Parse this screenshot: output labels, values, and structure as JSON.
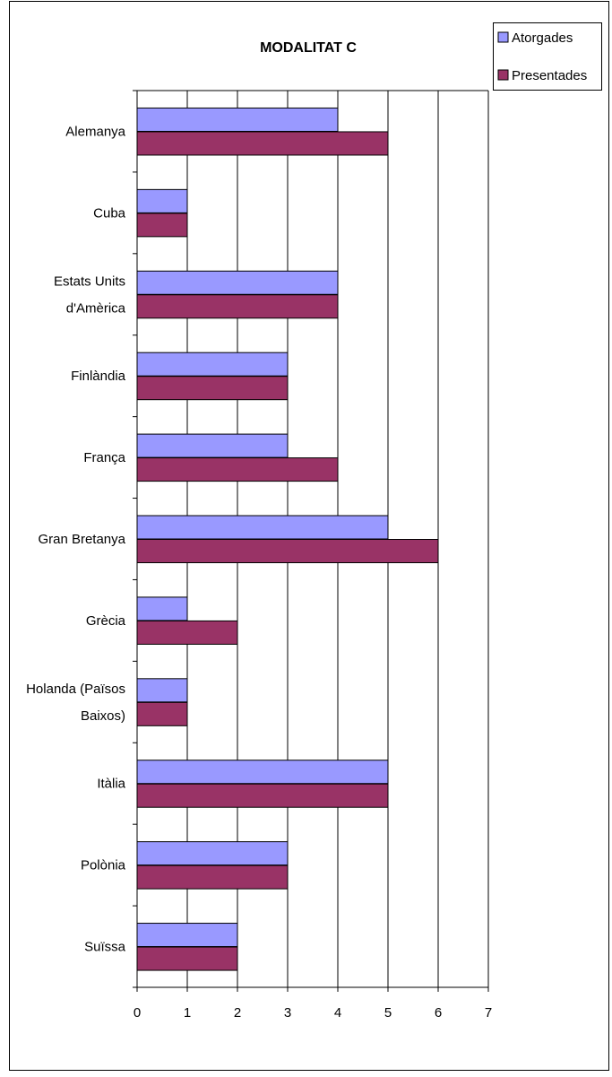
{
  "chart_data": {
    "type": "bar",
    "orientation": "horizontal",
    "title": "MODALITAT C",
    "categories": [
      [
        "Alemanya"
      ],
      [
        "Cuba"
      ],
      [
        "Estats Units",
        "d'Amèrica"
      ],
      [
        "Finlàndia"
      ],
      [
        "França"
      ],
      [
        "Gran Bretanya"
      ],
      [
        "Grècia"
      ],
      [
        "Holanda (Països",
        "Baixos)"
      ],
      [
        "Itàlia"
      ],
      [
        "Polònia"
      ],
      [
        "Suïssa"
      ]
    ],
    "series": [
      {
        "name": "Atorgades",
        "color": "#9999ff",
        "values": [
          4,
          1,
          4,
          3,
          3,
          5,
          1,
          1,
          5,
          3,
          2
        ]
      },
      {
        "name": "Presentades",
        "color": "#993366",
        "values": [
          5,
          1,
          4,
          3,
          4,
          6,
          2,
          1,
          5,
          3,
          2
        ]
      }
    ],
    "xticks": [
      "0",
      "1",
      "2",
      "3",
      "4",
      "5",
      "6",
      "7"
    ],
    "xlim": [
      0,
      7
    ],
    "grid": "vertical",
    "legend_position": "top-right"
  }
}
